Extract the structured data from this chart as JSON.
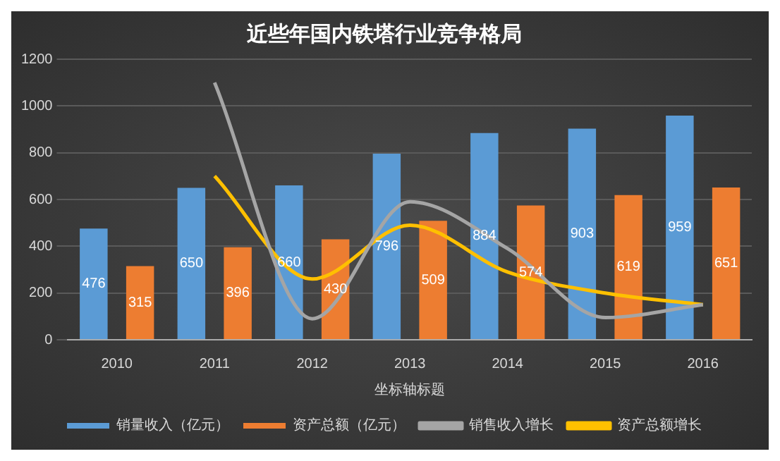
{
  "chart_data": {
    "type": "bar",
    "title": "近些年国内铁塔行业竞争格局",
    "xlabel": "坐标轴标题",
    "categories": [
      "2010",
      "2011",
      "2012",
      "2013",
      "2014",
      "2015",
      "2016"
    ],
    "series": [
      {
        "name": "销量收入（亿元）",
        "color": "#5b9bd5",
        "values": [
          476,
          650,
          660,
          796,
          884,
          903,
          959
        ],
        "value_labels": [
          "476",
          "650",
          "660",
          "796",
          "884",
          "903",
          "959"
        ]
      },
      {
        "name": "资产总额（亿元）",
        "color": "#ed7d31",
        "values": [
          315,
          396,
          430,
          509,
          574,
          619,
          651
        ],
        "value_labels": [
          "315",
          "396",
          "430",
          "509",
          "574",
          "619",
          "651"
        ]
      },
      {
        "name": "销售收入增长",
        "type": "line",
        "color": "#a5a5a5",
        "values": [
          null,
          1100,
          90,
          590,
          390,
          95,
          150
        ]
      },
      {
        "name": "资产总额增长",
        "type": "line",
        "color": "#ffc000",
        "values": [
          null,
          700,
          260,
          490,
          290,
          200,
          150
        ]
      }
    ],
    "ylim": [
      0,
      1200
    ],
    "yticks": [
      0,
      200,
      400,
      600,
      800,
      1000,
      1200
    ],
    "grid": "y",
    "legend": "bottom",
    "marker": "none"
  }
}
